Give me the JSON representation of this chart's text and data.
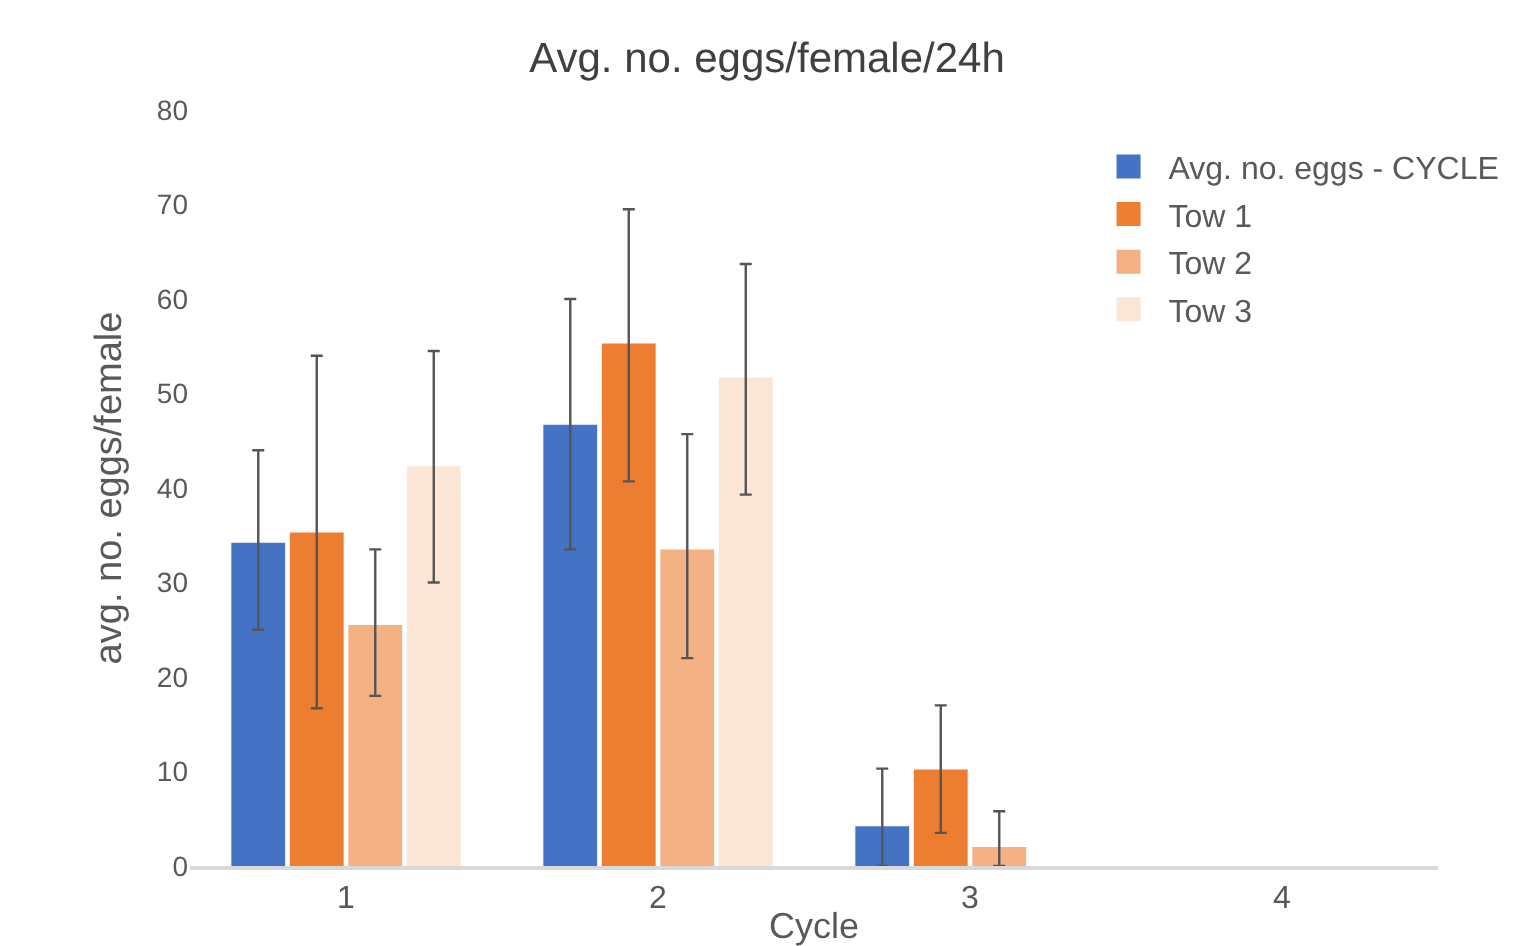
{
  "chart_data": {
    "type": "bar",
    "title": "Avg. no. eggs/female/24h",
    "xlabel": "Cycle",
    "ylabel": "avg. no. eggs/female",
    "categories": [
      "1",
      "2",
      "3",
      "4"
    ],
    "series": [
      {
        "name": "Avg. no. eggs - CYCLE",
        "color": "#4472c4",
        "values": [
          34.2,
          46.7,
          4.2,
          null
        ],
        "errors": [
          [
            25,
            44
          ],
          [
            33.5,
            60
          ],
          [
            0,
            10.3
          ],
          null
        ]
      },
      {
        "name": "Tow 1",
        "color": "#ed7d31",
        "values": [
          35.3,
          55.3,
          10.2,
          null
        ],
        "errors": [
          [
            16.7,
            54
          ],
          [
            40.7,
            69.5
          ],
          [
            3.5,
            17
          ],
          null
        ]
      },
      {
        "name": "Tow 2",
        "color": "#f4b183",
        "values": [
          25.5,
          33.5,
          2,
          null
        ],
        "errors": [
          [
            18,
            33.5
          ],
          [
            22,
            45.7
          ],
          [
            0,
            5.8
          ],
          null
        ]
      },
      {
        "name": "Tow 3",
        "color": "#fbe5d6",
        "values": [
          42.3,
          51.7,
          null,
          null
        ],
        "errors": [
          [
            30,
            54.5
          ],
          [
            39.3,
            63.7
          ],
          null,
          null
        ]
      }
    ],
    "ylim": [
      0,
      80
    ],
    "yticks": [
      0,
      10,
      20,
      30,
      40,
      50,
      60,
      70,
      80
    ],
    "grid": false,
    "legend": "top right"
  }
}
